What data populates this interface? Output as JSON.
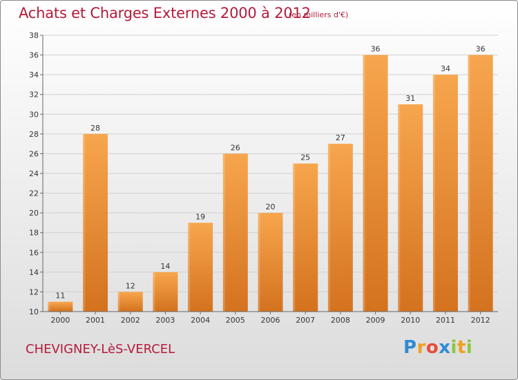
{
  "header": {
    "title": "Achats et Charges Externes 2000 à 2012",
    "subtitle": "(en milliers d'€)"
  },
  "footer": {
    "commune": "CHEVIGNEY-LèS-VERCEL",
    "logo": {
      "letters": [
        "P",
        "r",
        "o",
        "x",
        "i",
        "t",
        "i"
      ],
      "colors": [
        "#2e8ad6",
        "#f0a020",
        "#e74c3c",
        "#2e8ad6",
        "#8cc63f",
        "#f0a020",
        "#8cc63f"
      ]
    }
  },
  "chart_data": {
    "type": "bar",
    "categories": [
      "2000",
      "2001",
      "2002",
      "2003",
      "2004",
      "2005",
      "2006",
      "2007",
      "2008",
      "2009",
      "2010",
      "2011",
      "2012"
    ],
    "values": [
      11,
      28,
      12,
      14,
      19,
      26,
      20,
      25,
      27,
      36,
      31,
      34,
      36
    ],
    "data_labels": [
      "11",
      "28",
      "12",
      "14",
      "19",
      "26",
      "20",
      "25",
      "27",
      "36",
      "31",
      "34",
      "36"
    ],
    "ylim": [
      10,
      38
    ],
    "yticks": [
      10,
      12,
      14,
      16,
      18,
      20,
      22,
      24,
      26,
      28,
      30,
      32,
      34,
      36,
      38
    ],
    "grid": true,
    "colors": {
      "bar_top": "#f7a64e",
      "bar_bottom": "#d4721e",
      "title": "#b41a3a"
    }
  }
}
